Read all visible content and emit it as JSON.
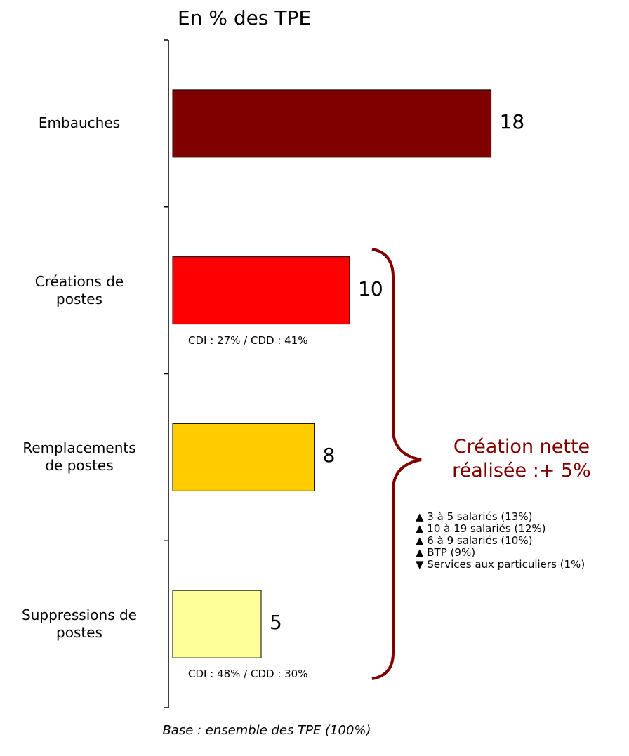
{
  "chart_data": {
    "type": "bar",
    "orientation": "horizontal",
    "title": "En % des TPE",
    "categories": [
      "Embauches",
      "Créations de\npostes",
      "Remplacements\nde postes",
      "Suppressions de\npostes"
    ],
    "values": [
      18,
      10,
      8,
      5
    ],
    "colors": [
      "#800000",
      "#ff0000",
      "#ffcc00",
      "#ffff99"
    ],
    "bar_notes": [
      null,
      "CDI : 27% / CDD : 41%",
      null,
      "CDI : 48% / CDD : 30%"
    ],
    "annotation": "Création nette\nréalisée :+ 5%",
    "details": [
      "▲ 3 à 5 salariés (13%)",
      "▲ 10 à 19 salariés (12%)",
      "▲ 6 à 9 salariés (10%)",
      "▲ BTP (9%)",
      "▼ Services aux particuliers (1%)"
    ],
    "footnote": "Base : ensemble des TPE (100%)"
  }
}
